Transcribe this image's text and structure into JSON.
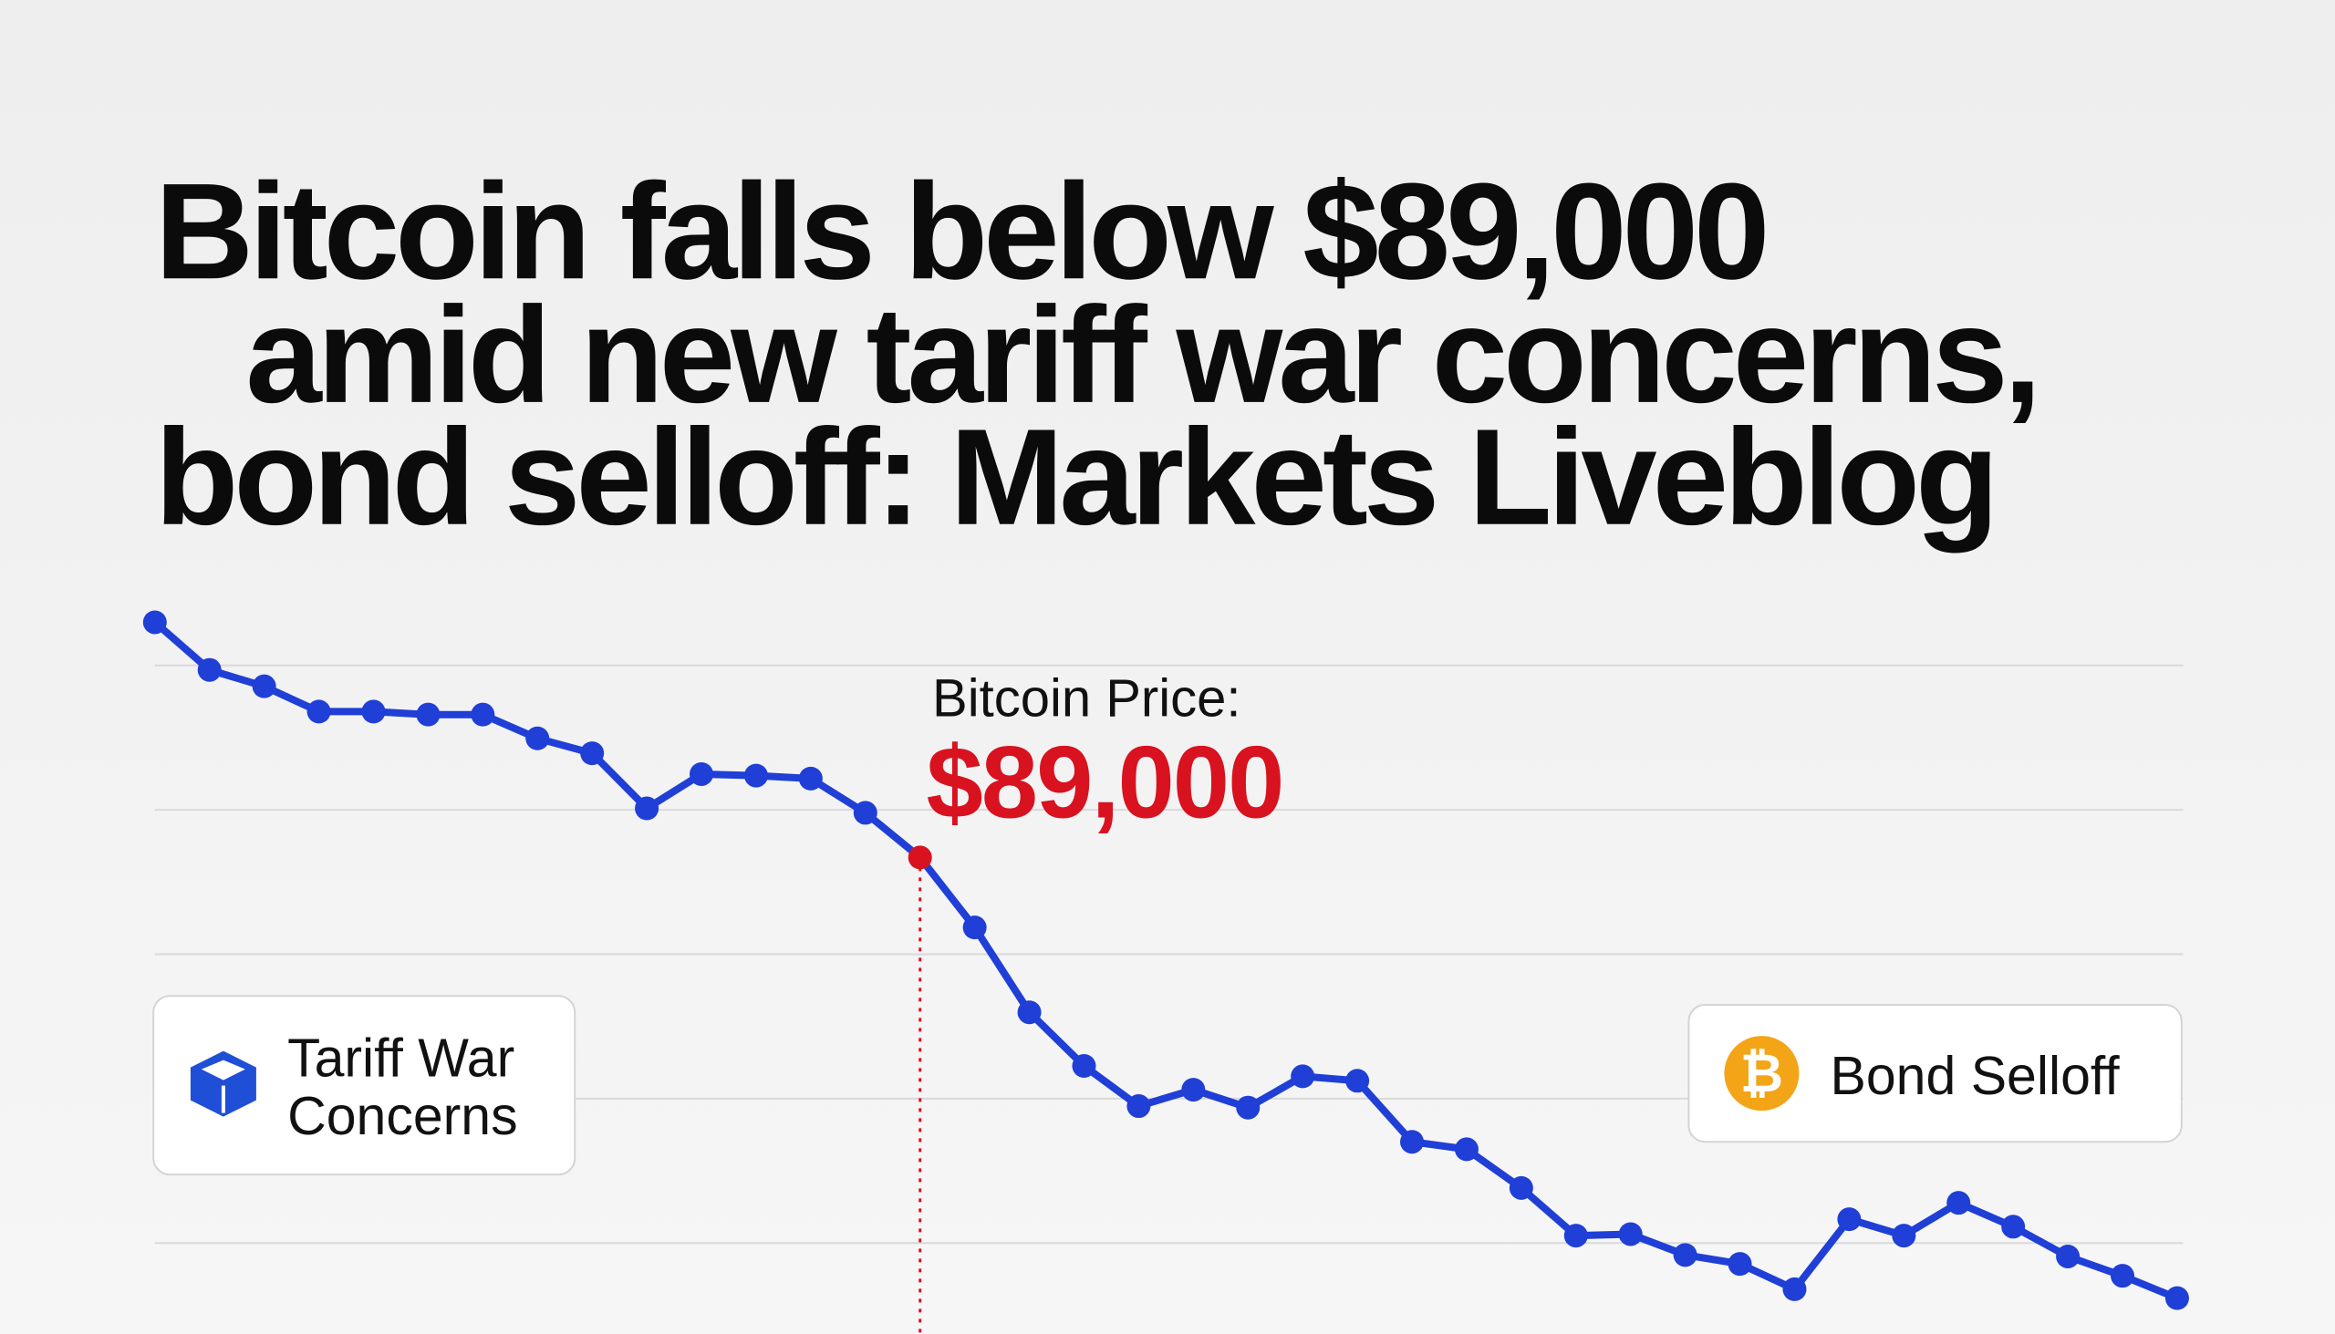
{
  "chart_data": {
    "type": "line",
    "title_lines": [
      "Bitcoin falls below $89,000",
      "amid new tariff war concerns,",
      "bond selloff: Markets Liveblog"
    ],
    "categories": [
      null,
      null,
      null,
      null,
      null,
      null,
      null,
      null,
      null,
      null,
      null,
      null,
      null,
      null,
      null,
      null,
      null,
      null,
      null,
      null,
      null,
      null,
      null,
      null,
      null,
      null,
      null,
      null,
      null,
      null,
      null,
      null,
      null,
      null,
      null,
      null,
      null,
      null
    ],
    "series": [
      {
        "name": "Bitcoin Price",
        "color": "#1f3fd6",
        "values": [
          90580,
          90260,
          90150,
          89980,
          89980,
          89960,
          89960,
          89800,
          89700,
          89330,
          89560,
          89550,
          89530,
          89300,
          89000,
          88530,
          87960,
          87600,
          87330,
          87440,
          87320,
          87530,
          87500,
          87090,
          87040,
          86780,
          86460,
          86470,
          86330,
          86270,
          86100,
          86570,
          86460,
          86680,
          86520,
          86320,
          86190,
          86040
        ]
      }
    ],
    "ylim": [
      86000,
      90600
    ],
    "grid": true,
    "highlight": {
      "index": 14,
      "label": "Bitcoin Price:",
      "value_label": "$89,000",
      "color": "#d8121f"
    },
    "callouts": [
      {
        "lines": [
          "Tariff War",
          "Concerns"
        ]
      },
      {
        "lines": [
          "Bond Selloff"
        ]
      }
    ]
  }
}
